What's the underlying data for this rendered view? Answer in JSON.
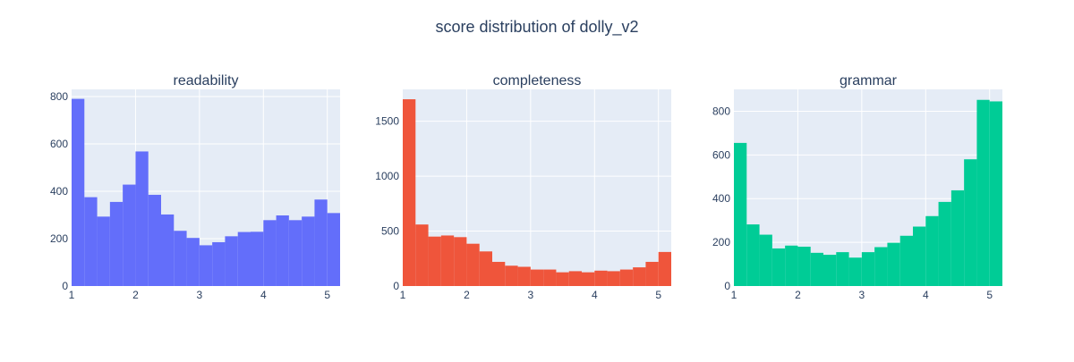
{
  "title": "score distribution of dolly_v2",
  "chart_data": [
    {
      "type": "bar",
      "title": "readability",
      "color": "#636efa",
      "bin_start": 1,
      "bin_width": 0.2,
      "values": [
        790,
        375,
        293,
        355,
        428,
        568,
        385,
        302,
        233,
        203,
        172,
        185,
        210,
        228,
        229,
        278,
        298,
        278,
        293,
        365,
        308
      ],
      "xlim": [
        1,
        5.2
      ],
      "ylim": [
        0,
        830
      ],
      "xticks": [
        1,
        2,
        3,
        4,
        5
      ],
      "yticks": [
        0,
        200,
        400,
        600,
        800
      ],
      "grid": true
    },
    {
      "type": "bar",
      "title": "completeness",
      "color": "#ef553b",
      "bin_start": 1,
      "bin_width": 0.2,
      "values": [
        1700,
        560,
        450,
        460,
        445,
        385,
        315,
        220,
        185,
        175,
        150,
        150,
        125,
        135,
        125,
        140,
        135,
        150,
        170,
        220,
        310
      ],
      "xlim": [
        1,
        5.2
      ],
      "ylim": [
        0,
        1790
      ],
      "xticks": [
        1,
        2,
        3,
        4,
        5
      ],
      "yticks": [
        0,
        500,
        1000,
        1500
      ],
      "grid": true
    },
    {
      "type": "bar",
      "title": "grammar",
      "color": "#00cc96",
      "bin_start": 1,
      "bin_width": 0.2,
      "values": [
        655,
        282,
        235,
        172,
        185,
        180,
        152,
        143,
        155,
        130,
        155,
        178,
        198,
        230,
        272,
        320,
        385,
        438,
        580,
        852,
        845
      ],
      "xlim": [
        1,
        5.2
      ],
      "ylim": [
        0,
        900
      ],
      "xticks": [
        1,
        2,
        3,
        4,
        5
      ],
      "yticks": [
        0,
        200,
        400,
        600,
        800
      ],
      "grid": true
    }
  ]
}
